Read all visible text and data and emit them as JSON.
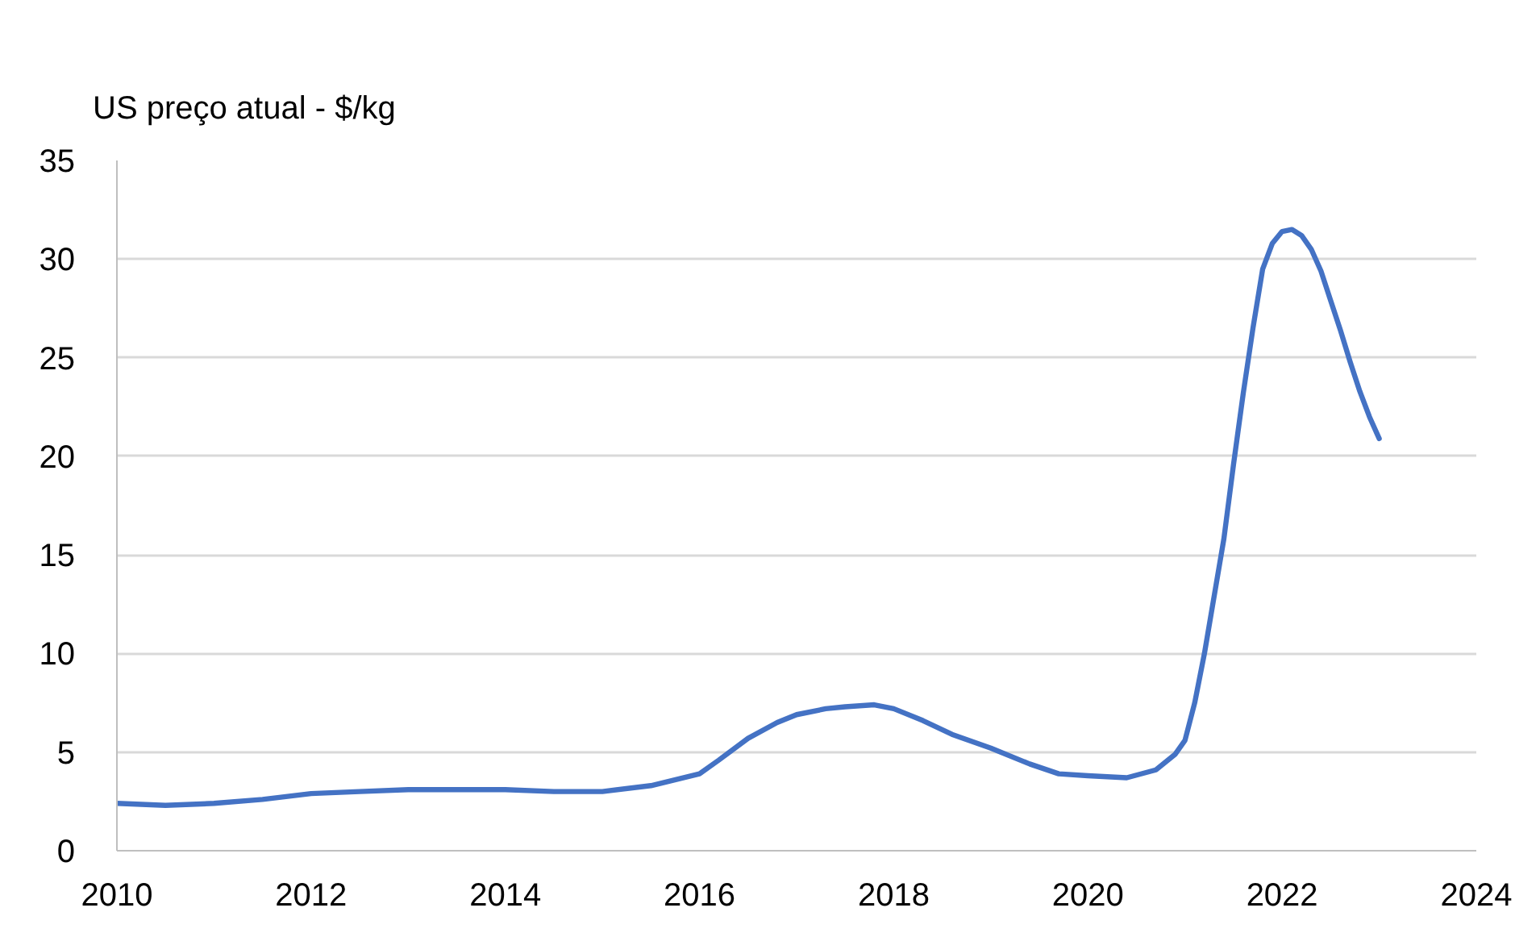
{
  "chart_data": {
    "type": "line",
    "ylabel": "US preço atual - $/kg",
    "x": [
      2010.0,
      2010.5,
      2011.0,
      2011.5,
      2012.0,
      2012.5,
      2013.0,
      2013.5,
      2014.0,
      2014.5,
      2015.0,
      2015.5,
      2016.0,
      2016.2,
      2016.5,
      2016.8,
      2017.0,
      2017.3,
      2017.5,
      2017.8,
      2018.0,
      2018.3,
      2018.6,
      2019.0,
      2019.4,
      2019.7,
      2020.0,
      2020.4,
      2020.7,
      2020.9,
      2021.0,
      2021.1,
      2021.2,
      2021.4,
      2021.5,
      2021.6,
      2021.7,
      2021.8,
      2021.9,
      2022.0,
      2022.1,
      2022.2,
      2022.3,
      2022.4,
      2022.5,
      2022.6,
      2022.7,
      2022.8,
      2022.9,
      2023.0
    ],
    "series": [
      {
        "color": "#4472c4",
        "values": [
          2.4,
          2.3,
          2.4,
          2.6,
          2.9,
          3.0,
          3.1,
          3.1,
          3.1,
          3.0,
          3.0,
          3.3,
          3.9,
          4.6,
          5.7,
          6.5,
          6.9,
          7.2,
          7.3,
          7.4,
          7.2,
          6.6,
          5.9,
          5.2,
          4.4,
          3.9,
          3.8,
          3.7,
          4.1,
          4.9,
          5.6,
          7.5,
          10.0,
          15.8,
          19.6,
          23.2,
          26.5,
          29.5,
          30.8,
          31.4,
          31.5,
          31.2,
          30.5,
          29.4,
          27.9,
          26.4,
          24.8,
          23.3,
          22.0,
          20.9
        ]
      }
    ],
    "xlim": [
      2010,
      2024
    ],
    "ylim": [
      0,
      35
    ],
    "xticks": [
      2010,
      2012,
      2014,
      2016,
      2018,
      2020,
      2022,
      2024
    ],
    "yticks": [
      0,
      5,
      10,
      15,
      20,
      25,
      30,
      35
    ],
    "grid": "y",
    "line_style": "solid"
  }
}
